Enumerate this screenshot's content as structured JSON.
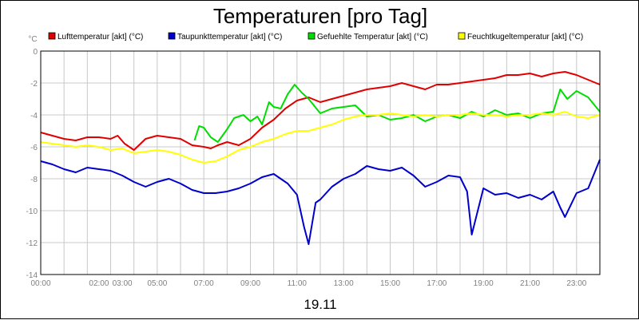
{
  "chart_data": {
    "type": "line",
    "title": "Temperaturen [pro Tag]",
    "ylabel": "°C",
    "xlabel": "19.11",
    "xlim": [
      0,
      24
    ],
    "ylim": [
      -14,
      0
    ],
    "yticks": [
      0,
      -2,
      -4,
      -6,
      -8,
      -10,
      -12,
      -14
    ],
    "ytick_labels": [
      "0",
      "-2",
      "-4",
      "-6",
      "-8",
      "-10",
      "-12",
      "-14"
    ],
    "xticks": [
      0,
      2.5,
      3.5,
      5,
      7,
      9,
      11,
      13,
      15,
      17,
      19,
      21,
      23
    ],
    "xtick_labels": [
      "00:00",
      "02:00",
      "03:00",
      "05:00",
      "07:00",
      "09:00",
      "11:00",
      "13:00",
      "15:00",
      "17:00",
      "19:00",
      "21:00",
      "23:00"
    ],
    "grid": true,
    "legend_position": "top",
    "series": [
      {
        "name": "Lufttemperatur [akt] (°C)",
        "color": "#e00000",
        "x": [
          0,
          0.5,
          1,
          1.5,
          2,
          2.5,
          3,
          3.3,
          3.6,
          4,
          4.5,
          5,
          5.5,
          6,
          6.5,
          7,
          7.3,
          7.6,
          8,
          8.5,
          9,
          9.5,
          10,
          10.5,
          11,
          11.5,
          12,
          12.5,
          13,
          13.5,
          14,
          14.5,
          15,
          15.5,
          16,
          16.5,
          17,
          17.5,
          18,
          18.5,
          19,
          19.5,
          20,
          20.5,
          21,
          21.5,
          22,
          22.5,
          23,
          23.5,
          24
        ],
        "y": [
          -5.1,
          -5.3,
          -5.5,
          -5.6,
          -5.4,
          -5.4,
          -5.5,
          -5.3,
          -5.8,
          -6.2,
          -5.5,
          -5.3,
          -5.4,
          -5.5,
          -5.9,
          -6.0,
          -6.1,
          -5.9,
          -5.7,
          -5.9,
          -5.5,
          -4.8,
          -4.3,
          -3.6,
          -3.1,
          -2.9,
          -3.2,
          -3.0,
          -2.8,
          -2.6,
          -2.4,
          -2.3,
          -2.2,
          -2.0,
          -2.2,
          -2.4,
          -2.1,
          -2.1,
          -2.0,
          -1.9,
          -1.8,
          -1.7,
          -1.5,
          -1.5,
          -1.4,
          -1.6,
          -1.4,
          -1.3,
          -1.5,
          -1.8,
          -2.1
        ]
      },
      {
        "name": "Taupunkttemperatur [akt] (°C)",
        "color": "#0000cc",
        "x": [
          0,
          0.5,
          1,
          1.5,
          2,
          2.5,
          3,
          3.5,
          4,
          4.5,
          5,
          5.5,
          6,
          6.5,
          7,
          7.5,
          8,
          8.5,
          9,
          9.5,
          10,
          10.3,
          10.6,
          11,
          11.3,
          11.5,
          11.8,
          12,
          12.5,
          13,
          13.5,
          14,
          14.5,
          15,
          15.5,
          16,
          16.5,
          17,
          17.5,
          18,
          18.3,
          18.5,
          19,
          19.5,
          20,
          20.5,
          21,
          21.5,
          22,
          22.3,
          22.5,
          23,
          23.5,
          24
        ],
        "y": [
          -6.9,
          -7.1,
          -7.4,
          -7.6,
          -7.3,
          -7.4,
          -7.5,
          -7.8,
          -8.2,
          -8.5,
          -8.2,
          -8.0,
          -8.3,
          -8.7,
          -8.9,
          -8.9,
          -8.8,
          -8.6,
          -8.3,
          -7.9,
          -7.7,
          -8.0,
          -8.3,
          -9.0,
          -11.0,
          -12.1,
          -9.5,
          -9.3,
          -8.5,
          -8.0,
          -7.7,
          -7.2,
          -7.4,
          -7.5,
          -7.3,
          -7.8,
          -8.5,
          -8.2,
          -7.8,
          -7.9,
          -8.8,
          -11.5,
          -8.6,
          -9.0,
          -8.9,
          -9.2,
          -9.0,
          -9.3,
          -8.8,
          -9.8,
          -10.4,
          -8.9,
          -8.6,
          -6.8
        ]
      },
      {
        "name": "Gefuehlte Temperatur [akt] (°C)",
        "color": "#00dd00",
        "x": [
          6.6,
          6.8,
          7.0,
          7.3,
          7.6,
          8.0,
          8.3,
          8.7,
          9.0,
          9.3,
          9.5,
          9.8,
          10.0,
          10.3,
          10.6,
          10.9,
          11.2,
          11.5,
          12.0,
          12.5,
          13.0,
          13.5,
          14.0,
          14.5,
          15.0,
          15.5,
          16.0,
          16.5,
          17.0,
          17.5,
          18.0,
          18.5,
          19.0,
          19.5,
          20.0,
          20.5,
          21.0,
          21.5,
          22.0,
          22.3,
          22.6,
          23.0,
          23.5,
          24.0
        ],
        "y": [
          -5.6,
          -4.7,
          -4.8,
          -5.4,
          -5.7,
          -4.9,
          -4.2,
          -4.0,
          -4.4,
          -4.1,
          -4.6,
          -3.2,
          -3.5,
          -3.6,
          -2.7,
          -2.1,
          -2.6,
          -3.0,
          -3.9,
          -3.6,
          -3.5,
          -3.4,
          -4.1,
          -4.0,
          -4.3,
          -4.2,
          -4.0,
          -4.4,
          -4.1,
          -4.0,
          -4.2,
          -3.8,
          -4.1,
          -3.7,
          -4.0,
          -3.9,
          -4.2,
          -3.9,
          -3.8,
          -2.4,
          -3.0,
          -2.5,
          -2.9,
          -3.8
        ]
      },
      {
        "name": "Feuchtkugeltemperatur [akt] (°C)",
        "color": "#ffff00",
        "x": [
          0,
          0.5,
          1,
          1.5,
          2,
          2.5,
          3,
          3.5,
          4,
          4.5,
          5,
          5.5,
          6,
          6.5,
          7,
          7.5,
          8,
          8.5,
          9,
          9.5,
          10,
          10.5,
          11,
          11.5,
          12,
          12.5,
          13,
          13.5,
          14,
          14.5,
          15,
          15.5,
          16,
          16.5,
          17,
          17.5,
          18,
          18.5,
          19,
          19.5,
          20,
          20.5,
          21,
          21.5,
          22,
          22.5,
          23,
          23.5,
          24
        ],
        "y": [
          -5.7,
          -5.8,
          -5.9,
          -6.0,
          -5.9,
          -6.0,
          -6.2,
          -6.1,
          -6.4,
          -6.3,
          -6.2,
          -6.3,
          -6.5,
          -6.8,
          -7.0,
          -6.9,
          -6.6,
          -6.2,
          -6.0,
          -5.7,
          -5.5,
          -5.2,
          -5.0,
          -5.0,
          -4.8,
          -4.6,
          -4.3,
          -4.1,
          -4.0,
          -4.0,
          -3.9,
          -4.0,
          -4.1,
          -4.0,
          -4.1,
          -4.0,
          -4.0,
          -3.9,
          -4.0,
          -4.0,
          -4.1,
          -4.0,
          -4.0,
          -3.9,
          -4.0,
          -3.8,
          -4.1,
          -4.2,
          -4.0
        ]
      }
    ]
  }
}
